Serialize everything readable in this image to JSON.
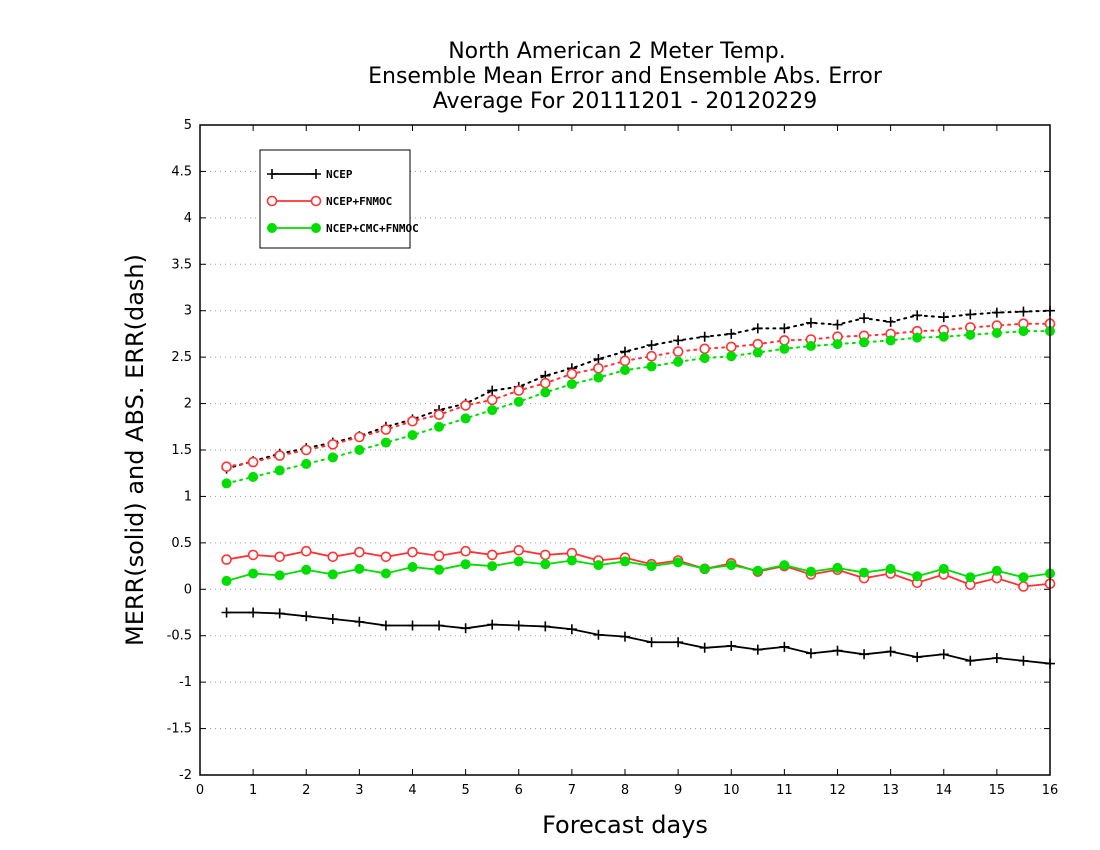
{
  "chart_data": {
    "type": "line",
    "title": [
      "North American 2 Meter Temp.",
      "Ensemble Mean Error and Ensemble Abs. Error",
      "Average For 20111201 - 20120229"
    ],
    "xlabel": "Forecast days",
    "ylabel": "MERR(solid) and ABS. ERR(dash)",
    "xlim": [
      0,
      16
    ],
    "ylim": [
      -2,
      5
    ],
    "xticks": [
      "0",
      "1",
      "2",
      "3",
      "4",
      "5",
      "6",
      "7",
      "8",
      "9",
      "10",
      "11",
      "12",
      "13",
      "14",
      "15",
      "16"
    ],
    "yticks": [
      "-2",
      "-1.5",
      "-1",
      "-0.5",
      "0",
      "0.5",
      "1",
      "1.5",
      "2",
      "2.5",
      "3",
      "3.5",
      "4",
      "4.5",
      "5"
    ],
    "grid": "horizontal dotted",
    "legend_position": "top-left",
    "x": [
      0.5,
      1,
      1.5,
      2,
      2.5,
      3,
      3.5,
      4,
      4.5,
      5,
      5.5,
      6,
      6.5,
      7,
      7.5,
      8,
      8.5,
      9,
      9.5,
      10,
      10.5,
      11,
      11.5,
      12,
      12.5,
      13,
      13.5,
      14,
      14.5,
      15,
      15.5,
      16
    ],
    "series": [
      {
        "name": "NCEP",
        "color": "#000000",
        "marker": "plus",
        "merr": [
          -0.25,
          -0.25,
          -0.26,
          -0.29,
          -0.32,
          -0.35,
          -0.39,
          -0.39,
          -0.39,
          -0.42,
          -0.38,
          -0.39,
          -0.4,
          -0.43,
          -0.49,
          -0.51,
          -0.57,
          -0.57,
          -0.63,
          -0.61,
          -0.65,
          -0.62,
          -0.69,
          -0.66,
          -0.7,
          -0.67,
          -0.73,
          -0.7,
          -0.77,
          -0.74,
          -0.77,
          -0.8
        ],
        "abs_err": [
          1.3,
          1.38,
          1.46,
          1.52,
          1.58,
          1.65,
          1.75,
          1.83,
          1.93,
          2.0,
          2.14,
          2.18,
          2.3,
          2.38,
          2.48,
          2.56,
          2.63,
          2.68,
          2.72,
          2.75,
          2.81,
          2.81,
          2.87,
          2.85,
          2.92,
          2.88,
          2.95,
          2.93,
          2.96,
          2.98,
          2.99,
          3.0
        ]
      },
      {
        "name": "NCEP+FNMOC",
        "color": "#ff3333",
        "marker": "open-circle",
        "merr": [
          0.32,
          0.37,
          0.35,
          0.41,
          0.35,
          0.4,
          0.35,
          0.4,
          0.36,
          0.41,
          0.37,
          0.42,
          0.37,
          0.39,
          0.31,
          0.34,
          0.27,
          0.31,
          0.22,
          0.28,
          0.19,
          0.25,
          0.16,
          0.21,
          0.12,
          0.17,
          0.07,
          0.16,
          0.05,
          0.12,
          0.03,
          0.06
        ],
        "abs_err": [
          1.32,
          1.37,
          1.44,
          1.5,
          1.56,
          1.64,
          1.72,
          1.81,
          1.88,
          1.98,
          2.04,
          2.14,
          2.22,
          2.32,
          2.38,
          2.46,
          2.51,
          2.56,
          2.59,
          2.61,
          2.64,
          2.68,
          2.69,
          2.72,
          2.73,
          2.75,
          2.78,
          2.79,
          2.82,
          2.84,
          2.86,
          2.86
        ]
      },
      {
        "name": "NCEP+CMC+FNMOC",
        "color": "#00dd00",
        "marker": "filled-circle",
        "merr": [
          0.09,
          0.17,
          0.15,
          0.21,
          0.16,
          0.22,
          0.17,
          0.24,
          0.21,
          0.27,
          0.25,
          0.3,
          0.27,
          0.31,
          0.26,
          0.3,
          0.25,
          0.29,
          0.22,
          0.26,
          0.2,
          0.26,
          0.19,
          0.23,
          0.18,
          0.22,
          0.14,
          0.22,
          0.13,
          0.2,
          0.13,
          0.17
        ],
        "abs_err": [
          1.14,
          1.21,
          1.28,
          1.35,
          1.42,
          1.5,
          1.58,
          1.66,
          1.75,
          1.84,
          1.93,
          2.02,
          2.12,
          2.21,
          2.28,
          2.36,
          2.4,
          2.45,
          2.49,
          2.51,
          2.55,
          2.59,
          2.62,
          2.64,
          2.66,
          2.68,
          2.71,
          2.72,
          2.74,
          2.76,
          2.78,
          2.78
        ]
      }
    ]
  }
}
